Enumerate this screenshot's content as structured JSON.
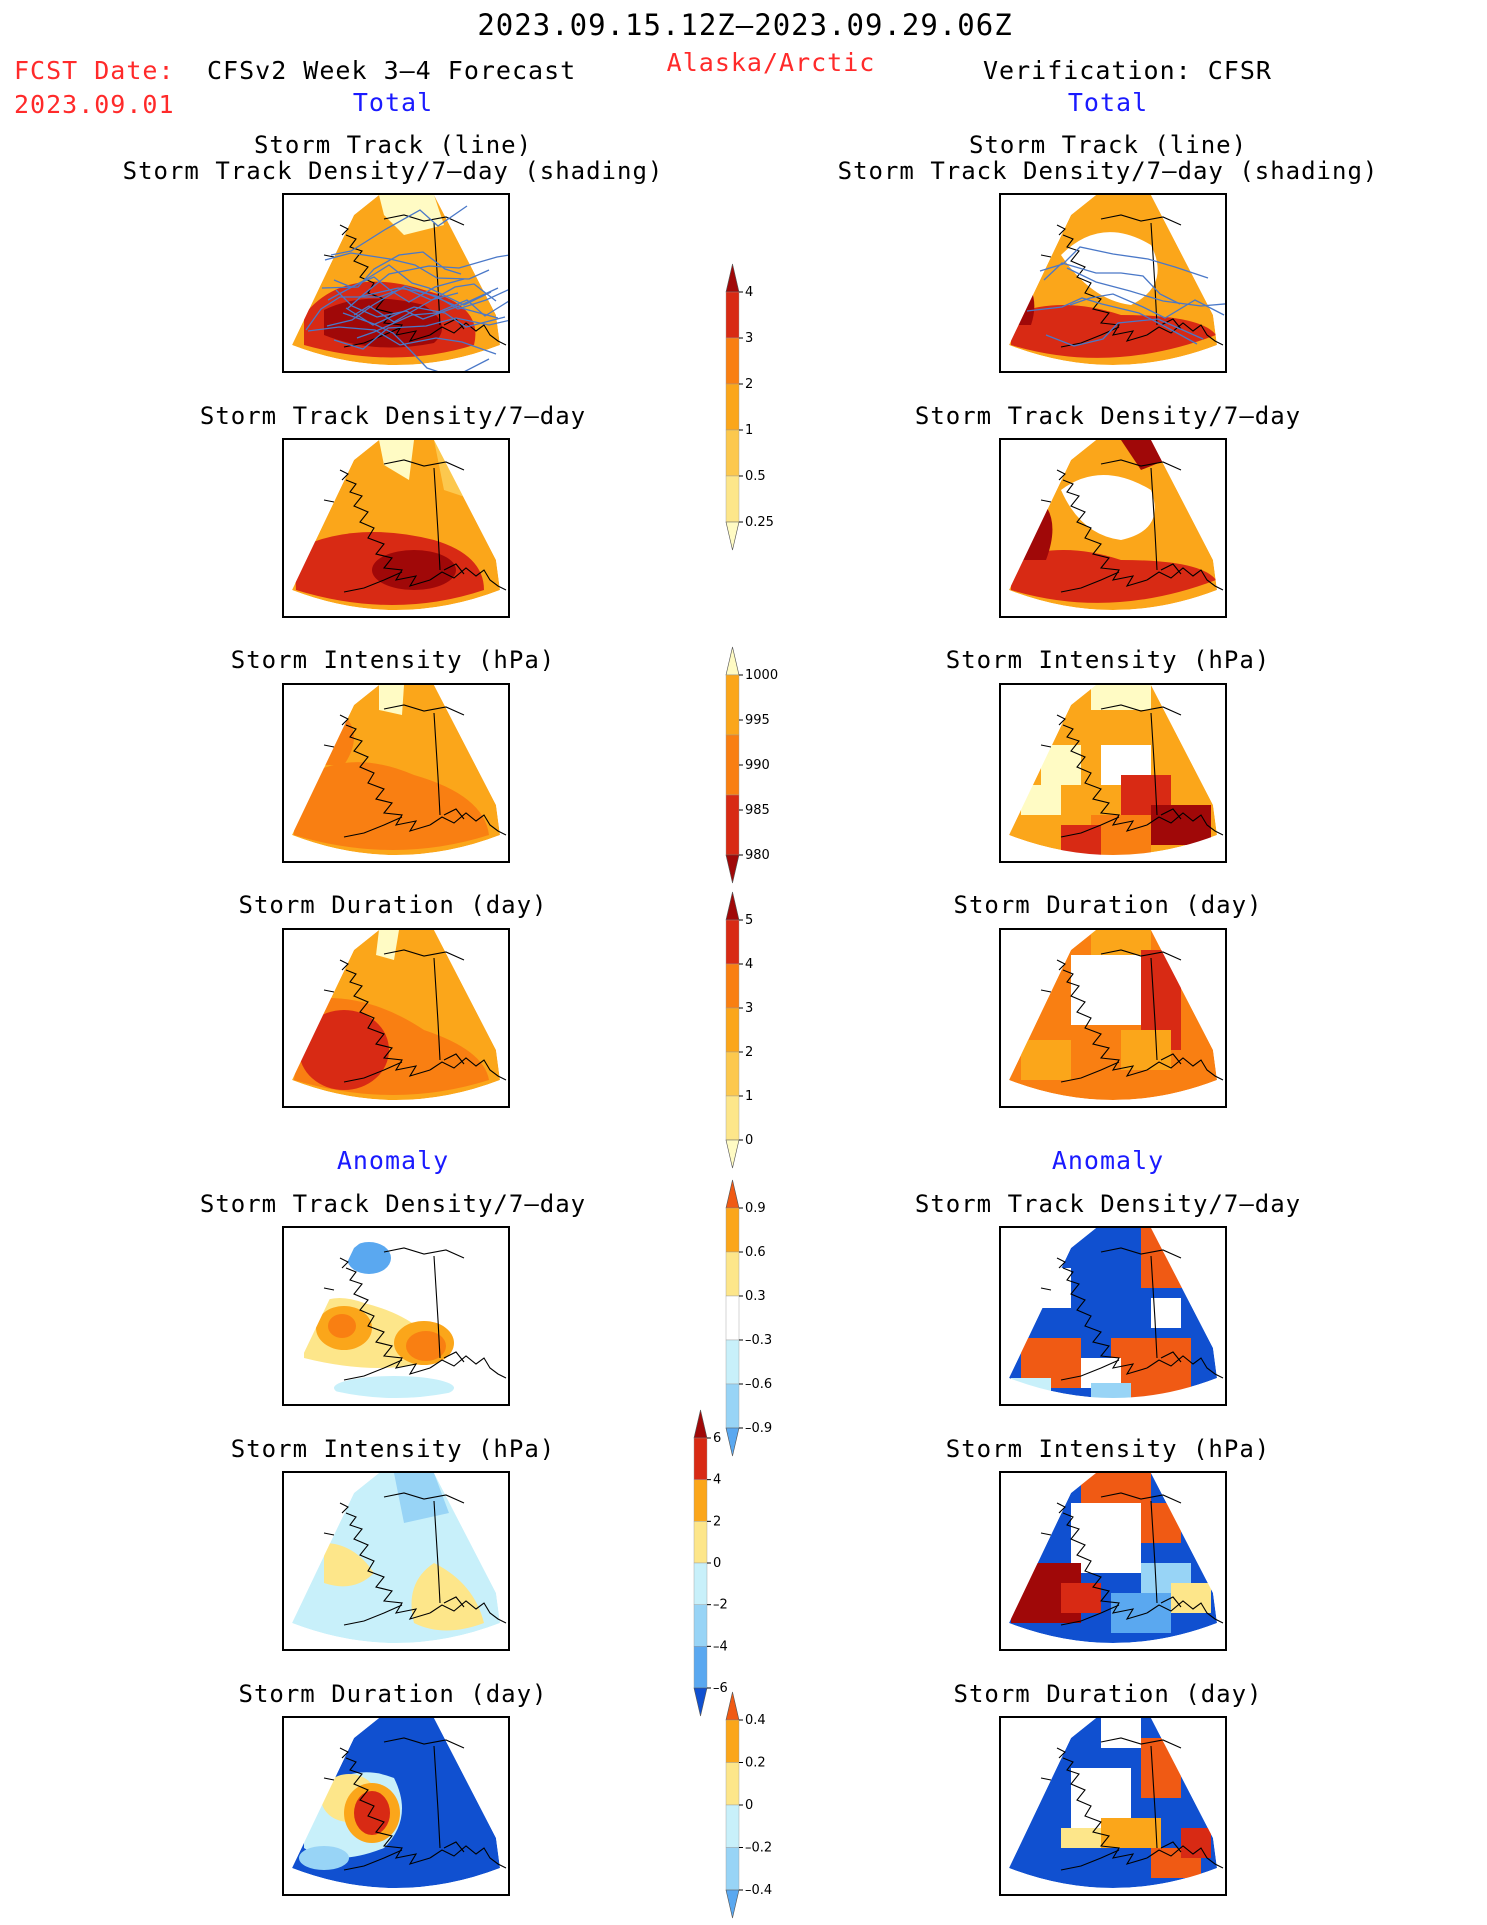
{
  "header": {
    "period": "2023.09.15.12Z–2023.09.29.06Z",
    "fcst_label": "FCST Date:",
    "fcst_date": "2023.09.01",
    "model": "CFSv2 Week 3–4 Forecast",
    "region": "Alaska/Arctic",
    "verification": "Verification: CFSR",
    "total_left": "Total",
    "total_right": "Total",
    "anomaly_left": "Anomaly",
    "anomaly_right": "Anomaly"
  },
  "panels": {
    "track_line": "Storm Track (line)",
    "track_shading": "Storm Track Density/7–day (shading)",
    "track_density": "Storm Track Density/7–day",
    "intensity": "Storm Intensity (hPa)",
    "duration": "Storm Duration (day)"
  },
  "colors": {
    "pale": "#fffbc4",
    "light_yellow": "#fde68a",
    "yellow": "#fcc84e",
    "orange_light": "#fba61a",
    "orange": "#f97f12",
    "orange_red": "#f05a14",
    "red": "#d82a14",
    "dark_red": "#a00808",
    "sky": "#c8f0fa",
    "light_blue": "#98d4f6",
    "mid_blue": "#5aa8f0",
    "blue": "#2a6ee0",
    "dark_blue": "#1050d0",
    "track_line": "#4a78c8"
  },
  "chart_data": [
    {
      "type": "heatmap",
      "name": "Forecast total storm track density with storm tracks",
      "title": "Storm Track (line) / Storm Track Density/7–day (shading)",
      "colorbar_ticks": [
        "4",
        "3",
        "2",
        "1",
        "0.5",
        "0.25"
      ]
    },
    {
      "type": "heatmap",
      "name": "Forecast total storm track density",
      "title": "Storm Track Density/7–day",
      "colorbar_ticks": [
        "4",
        "3",
        "2",
        "1",
        "0.5",
        "0.25"
      ]
    },
    {
      "type": "heatmap",
      "name": "Forecast total storm intensity",
      "title": "Storm Intensity (hPa)",
      "colorbar_ticks": [
        "1000",
        "995",
        "990",
        "985",
        "980"
      ]
    },
    {
      "type": "heatmap",
      "name": "Forecast total storm duration",
      "title": "Storm Duration (day)",
      "colorbar_ticks": [
        "5",
        "4",
        "3",
        "2",
        "1",
        "0"
      ]
    },
    {
      "type": "heatmap",
      "name": "Storm track density anomaly",
      "title": "Storm Track Density/7–day",
      "colorbar_ticks": [
        "0.9",
        "0.6",
        "0.3",
        "–0.3",
        "–0.6",
        "–0.9"
      ]
    },
    {
      "type": "heatmap",
      "name": "Storm intensity anomaly",
      "title": "Storm Intensity (hPa)",
      "colorbar_ticks": [
        "6",
        "4",
        "2",
        "0",
        "–2",
        "–4",
        "–6"
      ]
    },
    {
      "type": "heatmap",
      "name": "Storm duration anomaly",
      "title": "Storm Duration (day)",
      "colorbar_ticks": [
        "0.4",
        "0.2",
        "0",
        "–0.2",
        "–0.4"
      ]
    }
  ]
}
